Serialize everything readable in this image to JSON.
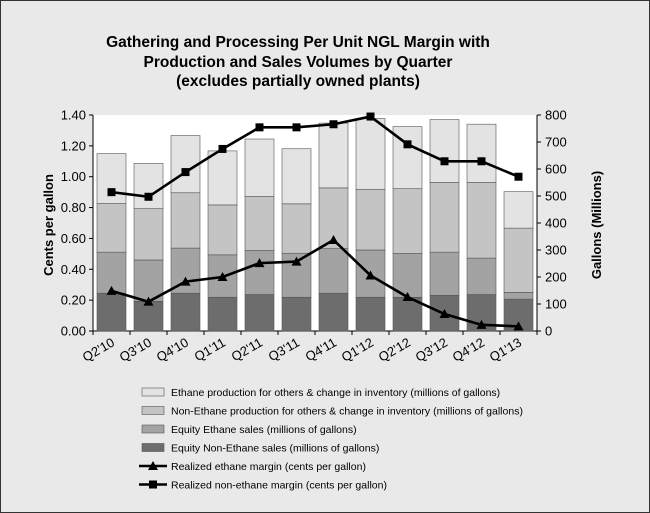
{
  "chart_data": {
    "type": "bar",
    "title": [
      "Gathering and Processing Per Unit NGL Margin with",
      "Production and Sales Volumes by Quarter",
      "(excludes partially owned plants)"
    ],
    "categories": [
      "Q2'10",
      "Q3'10",
      "Q4'10",
      "Q1'11",
      "Q2'11",
      "Q3'11",
      "Q4'11",
      "Q1'12",
      "Q2'12",
      "Q3'12",
      "Q4'12",
      "Q1'13"
    ],
    "ylabel_left": "Cents per gallon",
    "ylabel_right": "Gallons (Millions)",
    "ylim_left": [
      0,
      1.4
    ],
    "ylim_right": [
      0,
      800
    ],
    "yticks_left": [
      "0.00",
      "0.20",
      "0.40",
      "0.60",
      "0.80",
      "1.00",
      "1.20",
      "1.40"
    ],
    "yticks_right": [
      "0",
      "100",
      "200",
      "300",
      "400",
      "500",
      "600",
      "700",
      "800"
    ],
    "series": [
      {
        "name": "Equity Non-Ethane sales (millions of gallons)",
        "kind": "bar",
        "axis": "right",
        "color": "#6d6d6d",
        "values": [
          140,
          110,
          140,
          125,
          135,
          125,
          140,
          125,
          125,
          132,
          135,
          118
        ]
      },
      {
        "name": "Equity Ethane sales (millions of gallons)",
        "kind": "bar",
        "axis": "right",
        "color": "#a3a3a3",
        "values": [
          152,
          153,
          167,
          157,
          163,
          163,
          165,
          175,
          162,
          160,
          135,
          25
        ]
      },
      {
        "name": "Non-Ethane production for others & change in inventory (millions of gallons)",
        "kind": "bar",
        "axis": "right",
        "color": "#c4c4c4",
        "values": [
          180,
          190,
          205,
          185,
          200,
          183,
          225,
          225,
          240,
          258,
          280,
          238
        ]
      },
      {
        "name": "Ethane production for others & change in inventory (millions of gallons)",
        "kind": "bar",
        "axis": "right",
        "color": "#e3e3e3",
        "values": [
          185,
          168,
          212,
          200,
          213,
          204,
          240,
          262,
          230,
          233,
          216,
          135
        ]
      },
      {
        "name": "Realized ethane margin (cents per gallon)",
        "kind": "line",
        "axis": "left",
        "marker": "triangle",
        "color": "#000000",
        "values": [
          0.26,
          0.19,
          0.32,
          0.35,
          0.44,
          0.45,
          0.59,
          0.36,
          0.22,
          0.11,
          0.04,
          0.03
        ]
      },
      {
        "name": "Realized non-ethane margin (cents per gallon)",
        "kind": "line",
        "axis": "left",
        "marker": "square",
        "color": "#000000",
        "values": [
          0.9,
          0.87,
          1.03,
          1.18,
          1.32,
          1.32,
          1.34,
          1.39,
          1.21,
          1.1,
          1.1,
          1.0
        ]
      }
    ],
    "legend_order": [
      3,
      2,
      1,
      0,
      4,
      5
    ],
    "legend_position": "bottom"
  }
}
